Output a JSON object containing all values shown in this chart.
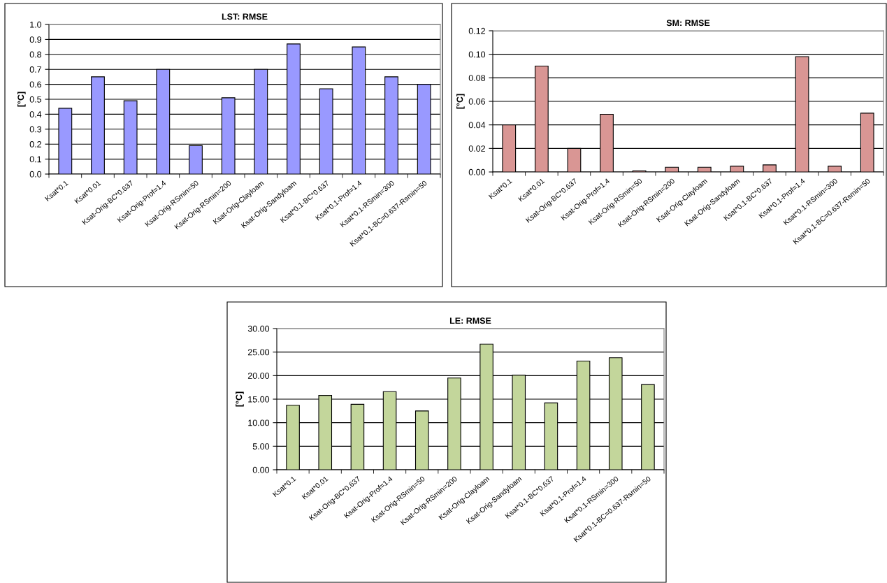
{
  "chart_data": [
    {
      "type": "bar",
      "title": "LST: RMSE",
      "ylabel": "[°C]",
      "categories": [
        "Ksat*0.1",
        "Ksat*0.01",
        "Ksat-Orig-BC*0.637",
        "Ksat-Orig-Prof=1.4",
        "Ksat-Orig-RSmin=50",
        "Ksat-Orig-RSmin=200",
        "Ksat-Orig-Clayloam",
        "Ksat-Orig-Sandyloam",
        "Ksat*0.1-BC*0.637",
        "Ksat*0.1-Prof=1.4",
        "Ksat*0.1-RSmin=300",
        "Ksat*0.1-BC=0.637-Rsmin=50"
      ],
      "values": [
        0.44,
        0.65,
        0.49,
        0.7,
        0.19,
        0.51,
        0.7,
        0.87,
        0.57,
        0.85,
        0.65,
        0.6
      ],
      "color": "#9999ff",
      "ylim": [
        0,
        1.0
      ],
      "yticks": [
        {
          "value": 0,
          "label": "0.0"
        },
        0.1,
        0.2,
        0.3,
        0.4,
        0.5,
        0.6,
        0.7,
        0.8,
        0.9,
        {
          "value": 1.0,
          "label": "1.0"
        }
      ],
      "grid": "y"
    },
    {
      "type": "bar",
      "title": "SM: RMSE",
      "ylabel": "[°C]",
      "categories": [
        "Ksat*0.1",
        "Ksat*0.01",
        "Ksat-Orig-BC*0.637",
        "Ksat-Orig-Prof=1.4",
        "Ksat-Orig-RSmin=50",
        "Ksat-Orig-RSmin=200",
        "Ksat-Orig-Clayloam",
        "Ksat-Orig-Sandyloam",
        "Ksat*0.1-BC*0.637",
        "Ksat*0.1-Prof=1.4",
        "Ksat*0.1-RSmin=300",
        "Ksat*0.1-BC=0.637-Rsmin=50"
      ],
      "values": [
        0.04,
        0.09,
        0.02,
        0.049,
        0.001,
        0.004,
        0.004,
        0.005,
        0.006,
        0.098,
        0.005,
        0.05
      ],
      "color": "#d99694",
      "ylim": [
        0,
        0.12
      ],
      "yticks": [
        {
          "value": 0,
          "label": "0.00"
        },
        {
          "value": 0.02,
          "label": "0.02"
        },
        {
          "value": 0.04,
          "label": "0.04"
        },
        {
          "value": 0.06,
          "label": "0.06"
        },
        {
          "value": 0.08,
          "label": "0.08"
        },
        {
          "value": 0.1,
          "label": "0.10"
        },
        {
          "value": 0.12,
          "label": "0.12"
        }
      ],
      "grid": "y"
    },
    {
      "type": "bar",
      "title": "LE: RMSE",
      "ylabel": "[°C]",
      "categories": [
        "Ksat*0.1",
        "Ksat*0.01",
        "Ksat-Orig-BC*0.637",
        "Ksat-Orig-Prof=1.4",
        "Ksat-Orig-RSmin=50",
        "Ksat-Orig-RSmin=200",
        "Ksat-Orig-Clayloam",
        "Ksat-Orig-Sandyloam",
        "Ksat*0.1-BC*0.637",
        "Ksat*0.1-Prof=1.4",
        "Ksat*0.1-RSmin=300",
        "Ksat*0.1-BC=0.637-Rsmin=50"
      ],
      "values": [
        13.7,
        15.8,
        13.9,
        16.6,
        12.5,
        19.5,
        26.7,
        20.1,
        14.2,
        23.1,
        23.8,
        18.1
      ],
      "color": "#c3d69b",
      "ylim": [
        0,
        30
      ],
      "yticks": [
        {
          "value": 0,
          "label": "0.00"
        },
        {
          "value": 5,
          "label": "5.00"
        },
        {
          "value": 10,
          "label": "10.00"
        },
        {
          "value": 15,
          "label": "15.00"
        },
        {
          "value": 20,
          "label": "20.00"
        },
        {
          "value": 25,
          "label": "25.00"
        },
        {
          "value": 30,
          "label": "30.00"
        }
      ],
      "grid": "y"
    }
  ]
}
